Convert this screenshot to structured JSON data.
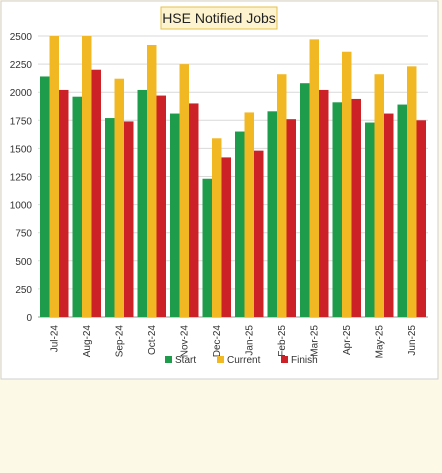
{
  "chart_data": {
    "type": "bar",
    "title": "HSE Notified Jobs",
    "categories": [
      "Jul-24",
      "Aug-24",
      "Sep-24",
      "Oct-24",
      "Nov-24",
      "Dec-24",
      "Jan-25",
      "Feb-25",
      "Mar-25",
      "Apr-25",
      "May-25",
      "Jun-25"
    ],
    "series": [
      {
        "name": "Start",
        "color": "#1e9b4b",
        "values": [
          2140,
          1960,
          1770,
          2020,
          1810,
          1230,
          1650,
          1830,
          2080,
          1910,
          1730,
          1890
        ]
      },
      {
        "name": "Current",
        "color": "#f2b824",
        "values": [
          2580,
          2520,
          2120,
          2420,
          2250,
          1590,
          1820,
          2160,
          2470,
          2360,
          2160,
          2230
        ]
      },
      {
        "name": "Finish",
        "color": "#cc2127",
        "values": [
          2020,
          2200,
          1740,
          1970,
          1900,
          1420,
          1480,
          1760,
          2020,
          1940,
          1810,
          1750
        ]
      }
    ],
    "ylim": [
      0,
      2500
    ],
    "yticks": [
      0,
      250,
      500,
      750,
      1000,
      1250,
      1500,
      1750,
      2000,
      2250,
      2500
    ],
    "grid": true,
    "legend": "bottom",
    "xlabel": "",
    "ylabel": ""
  }
}
